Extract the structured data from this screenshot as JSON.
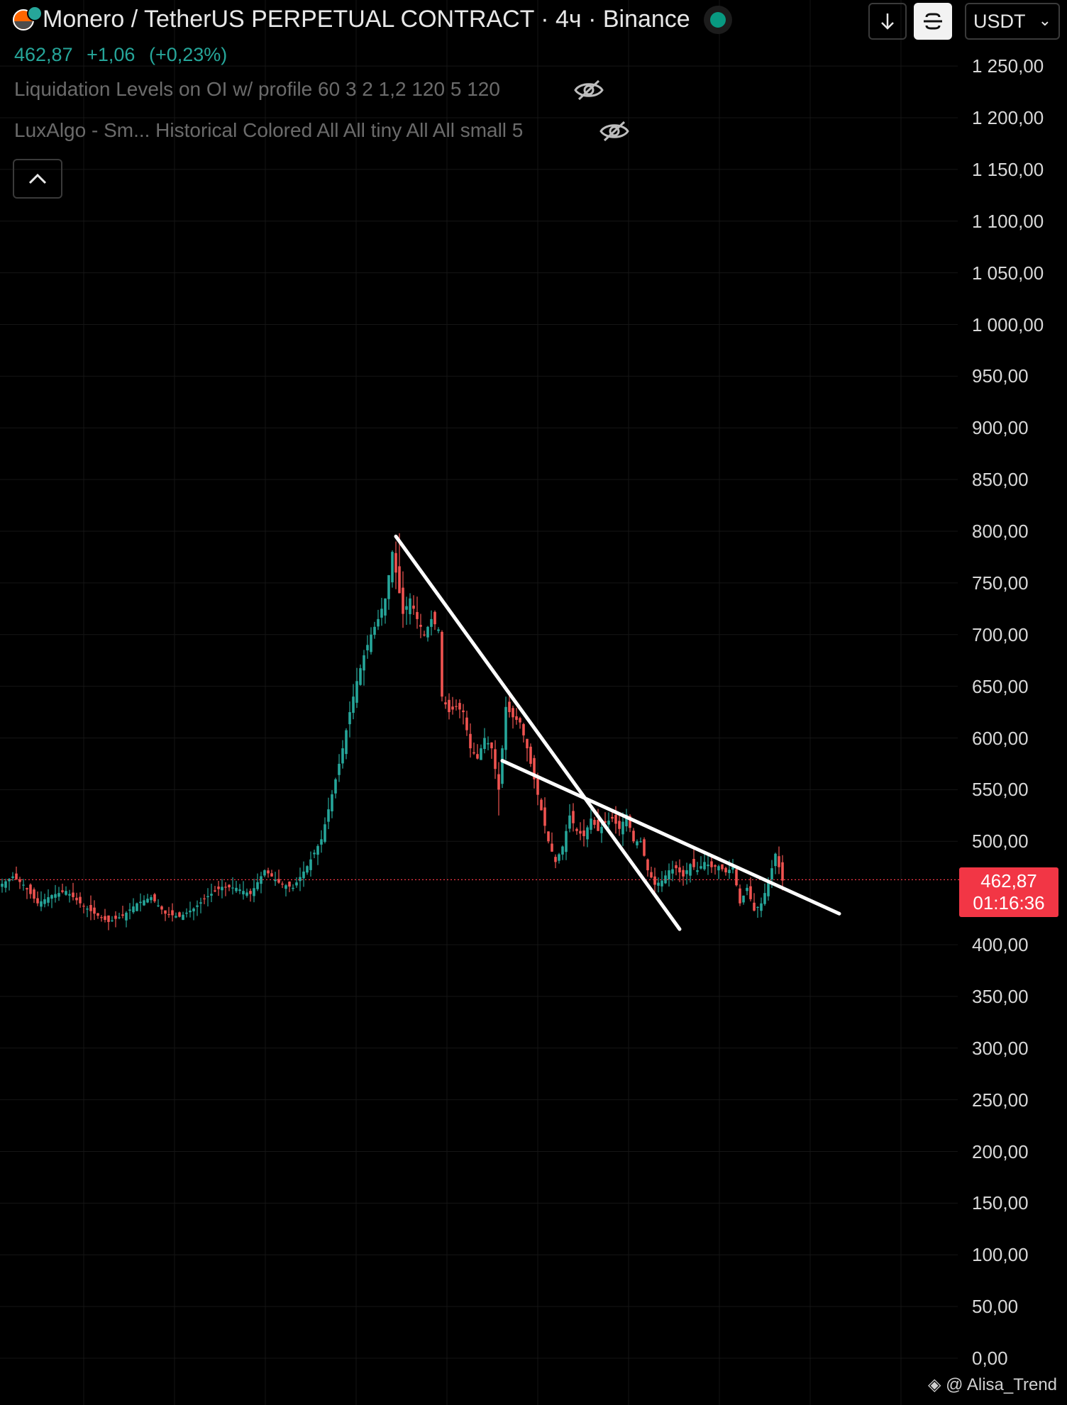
{
  "header": {
    "title": "Monero / TetherUS PERPETUAL CONTRACT · 4ч · Binance",
    "price": "462,87",
    "change": "+1,06",
    "change_pct": "(+0,23%)",
    "indicator1": "Liquidation Levels on OI w/ profile 60 3 2 1,2 120 5 120",
    "indicator2": "LuxAlgo - Sm... Historical Colored All All tiny All All small 5",
    "currency": "USDT",
    "icons": [
      "monero-logo-icon",
      "live-status-icon",
      "eye-off-icon",
      "chevron-up-icon",
      "arrow-down-icon",
      "frame-icon",
      "chevron-down-icon"
    ]
  },
  "price_tag": {
    "price": "462,87",
    "countdown": "01:16:36"
  },
  "watermark": "@ Alisa_Trend",
  "colors": {
    "up": "#26a69a",
    "down": "#ef5350",
    "price_tag": "#f23645",
    "background": "#000000",
    "trendline": "#ffffff"
  },
  "chart_data": {
    "type": "candlestick",
    "y_axis": {
      "ylim": [
        0,
        1300
      ],
      "tick_labels": [
        "1 250,00",
        "1 200,00",
        "1 150,00",
        "1 100,00",
        "1 050,00",
        "1 000,00",
        "950,00",
        "900,00",
        "850,00",
        "800,00",
        "750,00",
        "700,00",
        "650,00",
        "600,00",
        "550,00",
        "500,00",
        "400,00",
        "350,00",
        "300,00",
        "250,00",
        "200,00",
        "150,00",
        "100,00",
        "50,00",
        "0,00"
      ],
      "tick_values": [
        1250,
        1200,
        1150,
        1100,
        1050,
        1000,
        950,
        900,
        850,
        800,
        750,
        700,
        650,
        600,
        550,
        500,
        400,
        350,
        300,
        250,
        200,
        150,
        100,
        50,
        0
      ]
    },
    "current_price": 462.87,
    "close_keypoints": [
      [
        0,
        459
      ],
      [
        3,
        466
      ],
      [
        6,
        458
      ],
      [
        10,
        440
      ],
      [
        14,
        448
      ],
      [
        18,
        452
      ],
      [
        22,
        440
      ],
      [
        26,
        430
      ],
      [
        30,
        422
      ],
      [
        34,
        428
      ],
      [
        38,
        440
      ],
      [
        42,
        446
      ],
      [
        46,
        430
      ],
      [
        50,
        427
      ],
      [
        54,
        435
      ],
      [
        58,
        447
      ],
      [
        62,
        456
      ],
      [
        66,
        455
      ],
      [
        70,
        449
      ],
      [
        74,
        472
      ],
      [
        78,
        460
      ],
      [
        82,
        455
      ],
      [
        86,
        476
      ],
      [
        90,
        502
      ],
      [
        94,
        560
      ],
      [
        96,
        590
      ],
      [
        98,
        625
      ],
      [
        100,
        655
      ],
      [
        102,
        680
      ],
      [
        104,
        700
      ],
      [
        106,
        715
      ],
      [
        108,
        735
      ],
      [
        110,
        780
      ],
      [
        111,
        760
      ],
      [
        113,
        720
      ],
      [
        115,
        735
      ],
      [
        117,
        715
      ],
      [
        119,
        700
      ],
      [
        121,
        715
      ],
      [
        123,
        705
      ],
      [
        124,
        640
      ],
      [
        126,
        625
      ],
      [
        128,
        630
      ],
      [
        130,
        625
      ],
      [
        132,
        590
      ],
      [
        134,
        580
      ],
      [
        136,
        600
      ],
      [
        138,
        590
      ],
      [
        140,
        550
      ],
      [
        142,
        630
      ],
      [
        144,
        620
      ],
      [
        146,
        615
      ],
      [
        148,
        590
      ],
      [
        150,
        560
      ],
      [
        152,
        530
      ],
      [
        154,
        500
      ],
      [
        156,
        480
      ],
      [
        158,
        495
      ],
      [
        160,
        525
      ],
      [
        162,
        510
      ],
      [
        164,
        505
      ],
      [
        166,
        522
      ],
      [
        168,
        510
      ],
      [
        170,
        518
      ],
      [
        172,
        522
      ],
      [
        174,
        512
      ],
      [
        176,
        526
      ],
      [
        178,
        500
      ],
      [
        180,
        500
      ],
      [
        182,
        472
      ],
      [
        184,
        458
      ],
      [
        186,
        462
      ],
      [
        188,
        472
      ],
      [
        190,
        474
      ],
      [
        192,
        466
      ],
      [
        194,
        478
      ],
      [
        196,
        472
      ],
      [
        198,
        480
      ],
      [
        200,
        475
      ],
      [
        202,
        476
      ],
      [
        204,
        470
      ],
      [
        206,
        475
      ],
      [
        208,
        440
      ],
      [
        210,
        455
      ],
      [
        212,
        433
      ],
      [
        214,
        440
      ],
      [
        216,
        460
      ],
      [
        218,
        488
      ],
      [
        220,
        462
      ]
    ],
    "high_points": [
      [
        112,
        798
      ],
      [
        142,
        640
      ],
      [
        219,
        495
      ]
    ],
    "low_points": [
      [
        30,
        414
      ],
      [
        140,
        525
      ],
      [
        213,
        426
      ]
    ],
    "trendlines": [
      {
        "start": [
          111,
          795
        ],
        "end": [
          191,
          415
        ]
      },
      {
        "start": [
          141,
          578
        ],
        "end": [
          236,
          430
        ]
      }
    ],
    "grid": "on",
    "legend": "none"
  }
}
